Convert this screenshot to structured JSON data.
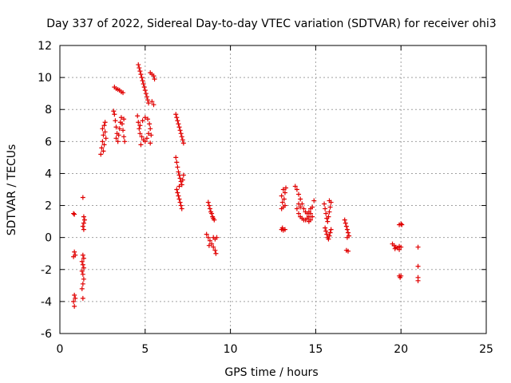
{
  "chart_data": {
    "type": "scatter",
    "title": "Day 337 of 2022, Sidereal Day-to-day VTEC variation (SDTVAR) for receiver ohi3",
    "xlabel": "GPS time / hours",
    "ylabel": "SDTVAR / TECUs",
    "xlim": [
      0,
      25
    ],
    "ylim": [
      -6,
      12
    ],
    "xticks": [
      0,
      5,
      10,
      15,
      20,
      25
    ],
    "yticks": [
      -6,
      -4,
      -2,
      0,
      2,
      4,
      6,
      8,
      10,
      12
    ],
    "xtick_labels": [
      "0",
      "5",
      "10",
      "15",
      "20",
      "25"
    ],
    "ytick_labels": [
      "-6",
      "-4",
      "-2",
      "0",
      "2",
      "4",
      "6",
      "8",
      "10",
      "12"
    ],
    "grid": true,
    "marker": "+",
    "color": "#e00000",
    "series": [
      {
        "name": "SDTVAR",
        "points": [
          [
            0.8,
            1.5
          ],
          [
            0.85,
            1.45
          ],
          [
            0.85,
            -0.9
          ],
          [
            0.9,
            -1.1
          ],
          [
            0.8,
            -1.2
          ],
          [
            0.85,
            -3.6
          ],
          [
            0.9,
            -3.8
          ],
          [
            0.8,
            -4.0
          ],
          [
            0.85,
            -4.3
          ],
          [
            1.35,
            2.5
          ],
          [
            1.4,
            1.3
          ],
          [
            1.45,
            1.1
          ],
          [
            1.4,
            0.9
          ],
          [
            1.35,
            0.7
          ],
          [
            1.4,
            0.5
          ],
          [
            1.35,
            -1.1
          ],
          [
            1.4,
            -1.3
          ],
          [
            1.3,
            -1.5
          ],
          [
            1.35,
            -1.7
          ],
          [
            1.4,
            -1.9
          ],
          [
            1.3,
            -2.1
          ],
          [
            1.35,
            -2.3
          ],
          [
            1.4,
            -2.6
          ],
          [
            1.35,
            -2.9
          ],
          [
            1.3,
            -3.2
          ],
          [
            1.35,
            -3.8
          ],
          [
            2.4,
            5.2
          ],
          [
            2.45,
            5.6
          ],
          [
            2.5,
            6.0
          ],
          [
            2.55,
            6.4
          ],
          [
            2.5,
            6.8
          ],
          [
            2.6,
            7.0
          ],
          [
            2.65,
            6.6
          ],
          [
            2.7,
            6.2
          ],
          [
            2.6,
            5.8
          ],
          [
            2.55,
            5.4
          ],
          [
            2.65,
            7.2
          ],
          [
            3.2,
            9.4
          ],
          [
            3.3,
            9.3
          ],
          [
            3.4,
            9.25
          ],
          [
            3.5,
            9.2
          ],
          [
            3.6,
            9.1
          ],
          [
            3.7,
            9.05
          ],
          [
            3.15,
            7.9
          ],
          [
            3.2,
            7.7
          ],
          [
            3.25,
            7.3
          ],
          [
            3.3,
            6.9
          ],
          [
            3.35,
            6.5
          ],
          [
            3.3,
            6.2
          ],
          [
            3.4,
            6.0
          ],
          [
            3.45,
            6.4
          ],
          [
            3.5,
            6.8
          ],
          [
            3.55,
            7.2
          ],
          [
            3.6,
            7.5
          ],
          [
            3.65,
            7.1
          ],
          [
            3.7,
            6.7
          ],
          [
            3.75,
            6.3
          ],
          [
            3.8,
            6.0
          ],
          [
            3.75,
            7.4
          ],
          [
            4.6,
            10.8
          ],
          [
            4.65,
            10.6
          ],
          [
            4.7,
            10.4
          ],
          [
            4.75,
            10.2
          ],
          [
            4.8,
            10.0
          ],
          [
            4.85,
            9.8
          ],
          [
            4.9,
            9.6
          ],
          [
            4.95,
            9.4
          ],
          [
            5.0,
            9.2
          ],
          [
            5.05,
            9.0
          ],
          [
            5.1,
            8.8
          ],
          [
            5.15,
            8.6
          ],
          [
            5.2,
            8.4
          ],
          [
            4.55,
            7.6
          ],
          [
            4.6,
            7.2
          ],
          [
            4.65,
            6.8
          ],
          [
            4.7,
            6.5
          ],
          [
            4.8,
            6.3
          ],
          [
            4.9,
            6.1
          ],
          [
            5.0,
            6.0
          ],
          [
            5.1,
            6.2
          ],
          [
            5.2,
            6.5
          ],
          [
            5.3,
            6.8
          ],
          [
            5.25,
            7.1
          ],
          [
            5.15,
            7.4
          ],
          [
            5.0,
            7.5
          ],
          [
            4.85,
            7.3
          ],
          [
            4.7,
            7.0
          ],
          [
            5.35,
            6.4
          ],
          [
            5.3,
            5.9
          ],
          [
            4.75,
            5.8
          ],
          [
            5.3,
            10.3
          ],
          [
            5.4,
            10.2
          ],
          [
            5.5,
            10.1
          ],
          [
            5.55,
            9.9
          ],
          [
            5.4,
            8.5
          ],
          [
            5.5,
            8.3
          ],
          [
            6.8,
            7.7
          ],
          [
            6.85,
            7.5
          ],
          [
            6.9,
            7.3
          ],
          [
            6.95,
            7.1
          ],
          [
            7.0,
            6.9
          ],
          [
            7.05,
            6.7
          ],
          [
            7.1,
            6.5
          ],
          [
            7.15,
            6.3
          ],
          [
            7.2,
            6.1
          ],
          [
            7.25,
            5.9
          ],
          [
            6.8,
            5.0
          ],
          [
            6.85,
            4.7
          ],
          [
            6.9,
            4.4
          ],
          [
            6.95,
            4.1
          ],
          [
            7.0,
            3.9
          ],
          [
            7.05,
            3.7
          ],
          [
            7.1,
            3.5
          ],
          [
            7.15,
            3.3
          ],
          [
            7.2,
            3.6
          ],
          [
            7.25,
            3.9
          ],
          [
            7.0,
            3.2
          ],
          [
            6.85,
            3.0
          ],
          [
            6.9,
            2.8
          ],
          [
            6.95,
            2.6
          ],
          [
            7.0,
            2.4
          ],
          [
            7.05,
            2.2
          ],
          [
            7.1,
            2.0
          ],
          [
            7.15,
            1.8
          ],
          [
            8.7,
            2.2
          ],
          [
            8.75,
            2.0
          ],
          [
            8.8,
            1.8
          ],
          [
            8.85,
            1.6
          ],
          [
            8.9,
            1.5
          ],
          [
            8.95,
            1.3
          ],
          [
            9.0,
            1.2
          ],
          [
            9.05,
            1.1
          ],
          [
            8.6,
            0.2
          ],
          [
            8.7,
            0.0
          ],
          [
            8.8,
            -0.2
          ],
          [
            8.9,
            -0.4
          ],
          [
            9.0,
            -0.6
          ],
          [
            9.1,
            -0.8
          ],
          [
            9.15,
            -1.0
          ],
          [
            9.0,
            0.0
          ],
          [
            9.1,
            -0.1
          ],
          [
            9.2,
            0.0
          ],
          [
            8.75,
            -0.5
          ],
          [
            13.0,
            0.5
          ],
          [
            13.1,
            0.45
          ],
          [
            13.2,
            0.5
          ],
          [
            13.05,
            0.6
          ],
          [
            13.0,
            2.6
          ],
          [
            13.05,
            2.2
          ],
          [
            13.1,
            1.9
          ],
          [
            13.15,
            2.4
          ],
          [
            13.2,
            2.8
          ],
          [
            13.25,
            3.1
          ],
          [
            13.1,
            3.0
          ],
          [
            13.2,
            2.0
          ],
          [
            13.0,
            1.8
          ],
          [
            13.8,
            3.2
          ],
          [
            13.9,
            3.0
          ],
          [
            14.0,
            2.7
          ],
          [
            14.1,
            2.4
          ],
          [
            14.2,
            2.1
          ],
          [
            14.3,
            1.8
          ],
          [
            14.4,
            1.6
          ],
          [
            14.5,
            1.5
          ],
          [
            14.6,
            1.6
          ],
          [
            14.7,
            1.8
          ],
          [
            13.9,
            1.8
          ],
          [
            14.0,
            1.5
          ],
          [
            14.1,
            1.3
          ],
          [
            14.2,
            1.2
          ],
          [
            14.3,
            1.1
          ],
          [
            14.4,
            1.1
          ],
          [
            14.5,
            1.2
          ],
          [
            14.6,
            1.3
          ],
          [
            14.7,
            1.5
          ],
          [
            14.8,
            1.9
          ],
          [
            14.9,
            2.3
          ],
          [
            14.8,
            1.3
          ],
          [
            14.7,
            1.1
          ],
          [
            14.6,
            1.0
          ],
          [
            14.1,
            1.9
          ],
          [
            14.0,
            2.1
          ],
          [
            15.5,
            2.1
          ],
          [
            15.55,
            1.8
          ],
          [
            15.6,
            1.5
          ],
          [
            15.65,
            1.2
          ],
          [
            15.7,
            1.0
          ],
          [
            15.75,
            1.3
          ],
          [
            15.8,
            1.6
          ],
          [
            15.85,
            1.9
          ],
          [
            15.9,
            2.2
          ],
          [
            15.8,
            2.3
          ],
          [
            15.55,
            0.6
          ],
          [
            15.6,
            0.4
          ],
          [
            15.65,
            0.2
          ],
          [
            15.7,
            0.0
          ],
          [
            15.75,
            -0.1
          ],
          [
            15.8,
            0.1
          ],
          [
            15.85,
            0.3
          ],
          [
            15.9,
            0.5
          ],
          [
            16.7,
            1.1
          ],
          [
            16.75,
            0.9
          ],
          [
            16.8,
            0.7
          ],
          [
            16.85,
            0.5
          ],
          [
            16.9,
            0.3
          ],
          [
            16.95,
            0.1
          ],
          [
            16.85,
            0.0
          ],
          [
            16.8,
            -0.8
          ],
          [
            16.9,
            -0.85
          ],
          [
            19.5,
            -0.4
          ],
          [
            19.6,
            -0.5
          ],
          [
            19.7,
            -0.6
          ],
          [
            19.8,
            -0.65
          ],
          [
            19.9,
            -0.55
          ],
          [
            20.0,
            -0.6
          ],
          [
            19.65,
            -0.7
          ],
          [
            19.9,
            -0.75
          ],
          [
            19.9,
            0.8
          ],
          [
            20.0,
            0.85
          ],
          [
            20.05,
            0.8
          ],
          [
            19.9,
            -2.4
          ],
          [
            20.0,
            -2.4
          ],
          [
            19.95,
            -2.5
          ],
          [
            21.0,
            -0.6
          ],
          [
            21.0,
            -1.8
          ],
          [
            21.0,
            -2.5
          ],
          [
            21.0,
            -2.7
          ]
        ]
      }
    ]
  }
}
